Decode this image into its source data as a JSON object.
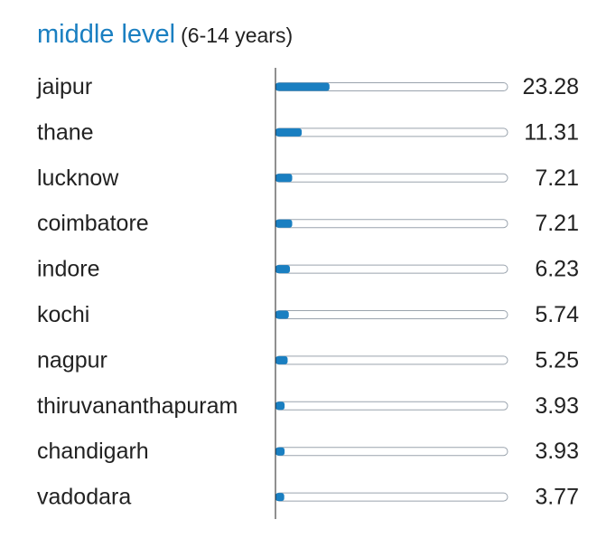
{
  "chart_data": {
    "type": "bar",
    "orientation": "horizontal",
    "title": "middle level",
    "subtitle": "(6-14 years)",
    "categories": [
      "jaipur",
      "thane",
      "lucknow",
      "coimbatore",
      "indore",
      "kochi",
      "nagpur",
      "thiruvananthapuram",
      "chandigarh",
      "vadodara"
    ],
    "values": [
      23.28,
      11.31,
      7.21,
      7.21,
      6.23,
      5.74,
      5.25,
      3.93,
      3.93,
      3.77
    ],
    "value_labels": [
      "23.28",
      "11.31",
      "7.21",
      "7.21",
      "6.23",
      "5.74",
      "5.25",
      "3.93",
      "3.93",
      "3.77"
    ],
    "xlim": [
      0,
      100
    ],
    "grid": false,
    "colors": {
      "bar": "#1a7fc1",
      "track_border": "#9aa3ad",
      "axis": "#222222",
      "title": "#1a7fc1"
    }
  }
}
